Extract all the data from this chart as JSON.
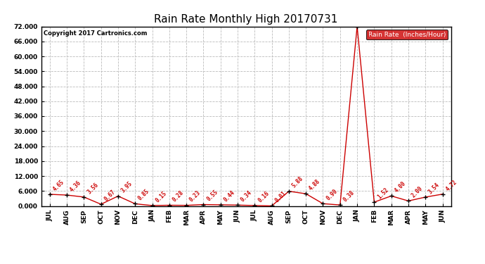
{
  "title": "Rain Rate Monthly High 20170731",
  "copyright": "Copyright 2017 Cartronics.com",
  "legend_label": "Rain Rate  (Inches/Hour)",
  "x_labels": [
    "JUL",
    "AUG",
    "SEP",
    "OCT",
    "NOV",
    "DEC",
    "JAN",
    "FEB",
    "MAR",
    "APR",
    "MAY",
    "JUN",
    "JUL",
    "AUG",
    "SEP",
    "OCT",
    "NOV",
    "DEC",
    "JAN",
    "FEB",
    "MAR",
    "APR",
    "MAY",
    "JUN"
  ],
  "values": [
    4.65,
    4.36,
    3.56,
    0.67,
    3.95,
    0.85,
    0.15,
    0.28,
    0.23,
    0.55,
    0.44,
    0.34,
    0.16,
    0.01,
    5.88,
    4.88,
    0.9,
    0.38,
    72.0,
    1.52,
    4.0,
    2.0,
    3.54,
    4.72
  ],
  "line_color": "#cc0000",
  "marker_color": "#000000",
  "background_color": "#ffffff",
  "grid_color": "#bbbbbb",
  "ylim": [
    0,
    72
  ],
  "yticks": [
    0.0,
    6.0,
    12.0,
    18.0,
    24.0,
    30.0,
    36.0,
    42.0,
    48.0,
    54.0,
    60.0,
    66.0,
    72.0
  ],
  "title_fontsize": 11,
  "label_fontsize": 5.5,
  "tick_fontsize": 6.5,
  "legend_box_color": "#cc0000",
  "legend_text_color": "#ffffff"
}
